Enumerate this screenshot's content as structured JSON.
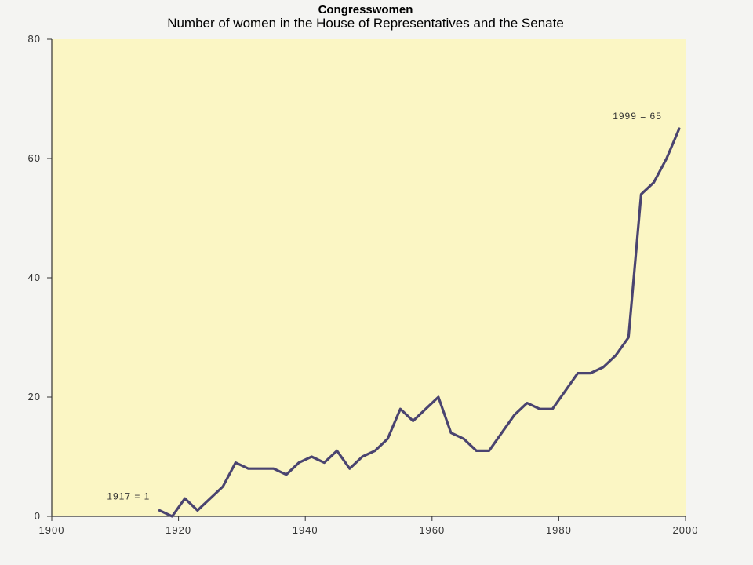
{
  "chart_data": {
    "type": "line",
    "title": "Congresswomen",
    "subtitle": "Number of women in the House of Representatives and the Senate",
    "xlabel": "",
    "ylabel": "",
    "xlim": [
      1900,
      2000
    ],
    "ylim": [
      0,
      80
    ],
    "x_ticks": [
      "1900",
      "1920",
      "1940",
      "1960",
      "1980",
      "2000"
    ],
    "y_ticks": [
      "0",
      "20",
      "40",
      "60",
      "80"
    ],
    "grid": false,
    "colors": {
      "line": "#4a4470",
      "plot_bg": "#fbf6c4",
      "axis": "#333333"
    },
    "series": [
      {
        "x": [
          1917,
          1919,
          1921,
          1923,
          1925,
          1927,
          1929,
          1931,
          1933,
          1935,
          1937,
          1939,
          1941,
          1943,
          1945,
          1947,
          1949,
          1951,
          1953,
          1955,
          1957,
          1959,
          1961,
          1963,
          1965,
          1967,
          1969,
          1971,
          1973,
          1975,
          1977,
          1979,
          1981,
          1983,
          1985,
          1987,
          1989,
          1991,
          1993,
          1995,
          1997,
          1999
        ],
        "y": [
          1,
          0,
          3,
          1,
          3,
          5,
          9,
          8,
          8,
          8,
          7,
          9,
          10,
          9,
          11,
          8,
          10,
          11,
          13,
          18,
          16,
          18,
          20,
          14,
          13,
          11,
          11,
          14,
          17,
          19,
          18,
          18,
          21,
          24,
          24,
          25,
          27,
          30,
          54,
          56,
          60,
          65
        ]
      }
    ],
    "annotations": [
      {
        "text": "1917 = 1",
        "x": 1917,
        "y": 1
      },
      {
        "text": "1999 = 65",
        "x": 1999,
        "y": 65
      }
    ]
  }
}
